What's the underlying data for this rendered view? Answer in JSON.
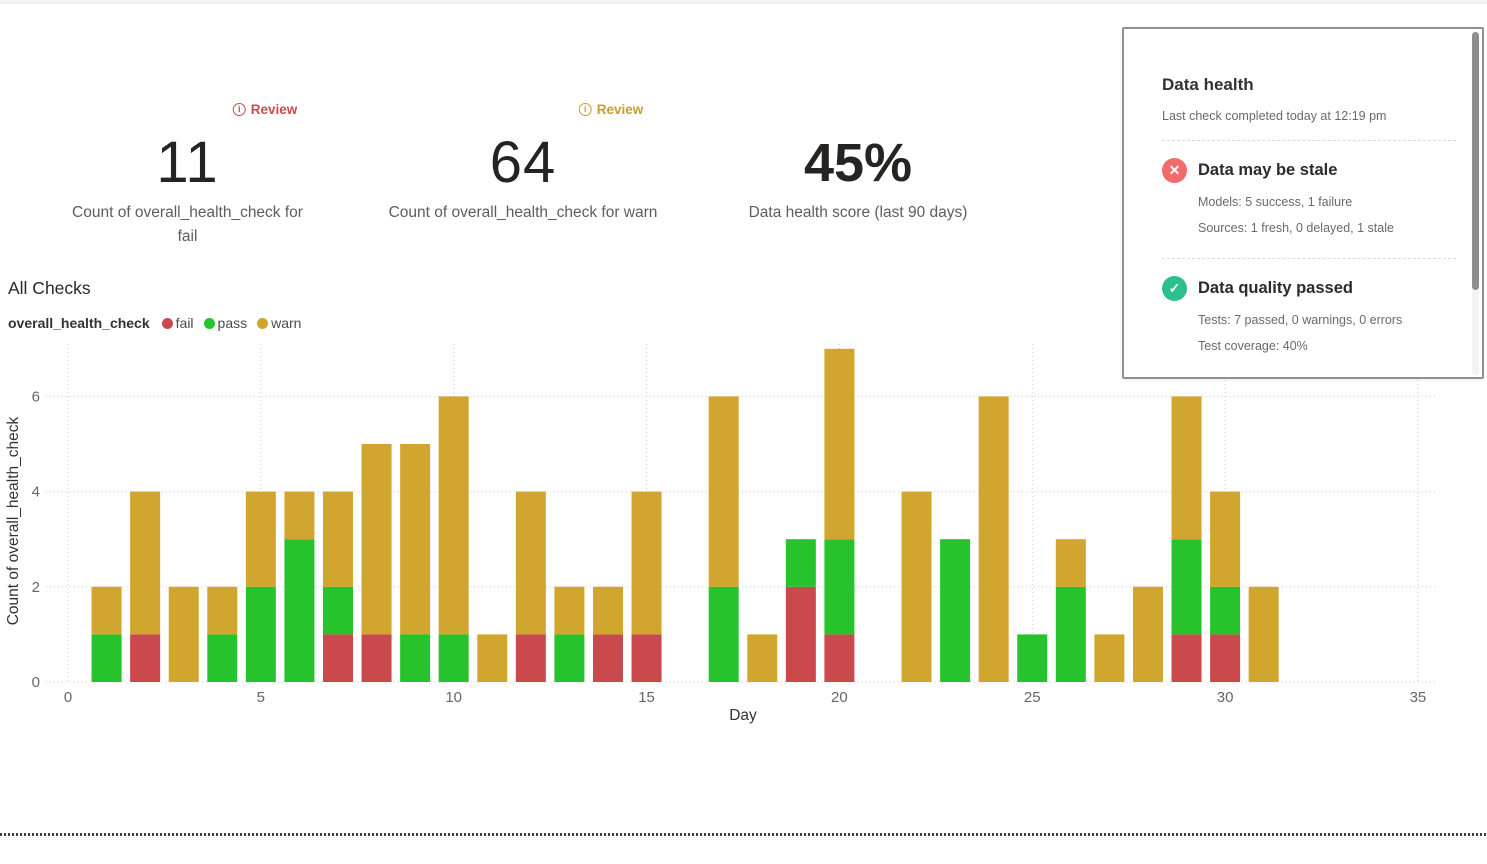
{
  "kpis": [
    {
      "badge_label": "Review",
      "accent": "#ce4a50",
      "value": "11",
      "label": "Count of overall_health_check for fail"
    },
    {
      "badge_label": "Review",
      "accent": "#c7a02a",
      "value": "64",
      "label": "Count of overall_health_check for warn"
    },
    {
      "value": "45%",
      "label": "Data health score (last 90 days)"
    }
  ],
  "section": {
    "title": "All Checks"
  },
  "legend": {
    "series_name": "overall_health_check",
    "items": [
      {
        "label": "fail",
        "color": "#c9494d"
      },
      {
        "label": "pass",
        "color": "#27c32c"
      },
      {
        "label": "warn",
        "color": "#d1a62f"
      }
    ]
  },
  "chart_data": {
    "type": "bar",
    "stacked": true,
    "title": "All Checks",
    "xlabel": "Day",
    "ylabel": "Count of overall_health_check",
    "x": [
      1,
      2,
      3,
      4,
      5,
      6,
      7,
      8,
      9,
      10,
      11,
      12,
      13,
      14,
      15,
      16,
      17,
      18,
      19,
      20,
      21,
      22,
      23,
      24,
      25,
      26,
      27,
      28,
      29,
      30,
      31
    ],
    "series": [
      {
        "name": "fail",
        "color": "#c9494d",
        "values": [
          0,
          1,
          0,
          0,
          0,
          0,
          1,
          1,
          0,
          0,
          0,
          1,
          0,
          1,
          1,
          0,
          0,
          0,
          2,
          1,
          0,
          0,
          0,
          0,
          0,
          0,
          0,
          0,
          1,
          1,
          0
        ]
      },
      {
        "name": "pass",
        "color": "#27c32c",
        "values": [
          1,
          0,
          0,
          1,
          2,
          3,
          1,
          0,
          1,
          1,
          0,
          0,
          1,
          0,
          0,
          0,
          2,
          0,
          1,
          2,
          0,
          0,
          3,
          0,
          1,
          2,
          0,
          0,
          2,
          1,
          0
        ]
      },
      {
        "name": "warn",
        "color": "#d1a62f",
        "values": [
          1,
          3,
          2,
          1,
          2,
          1,
          2,
          4,
          4,
          5,
          1,
          3,
          1,
          1,
          3,
          0,
          4,
          1,
          0,
          4,
          0,
          4,
          0,
          6,
          0,
          1,
          1,
          2,
          3,
          2,
          2
        ]
      }
    ],
    "xticks": [
      0,
      5,
      10,
      15,
      20,
      25,
      30,
      35
    ],
    "yticks": [
      0,
      2,
      4,
      6
    ],
    "xlim": [
      0,
      35.8
    ],
    "ylim": [
      0,
      7.2
    ],
    "grid": true,
    "legend_position": "top-left"
  },
  "panel": {
    "title": "Data health",
    "subtitle": "Last check completed today at 12:19 pm",
    "items": [
      {
        "icon": "x-circle-icon",
        "glyph": "✕",
        "color": "#f26b6b",
        "title": "Data may be stale",
        "lines": [
          "Models: 5 success, 1 failure",
          "Sources: 1 fresh, 0 delayed, 1 stale"
        ]
      },
      {
        "icon": "check-circle-icon",
        "glyph": "✓",
        "color": "#2dbf8d",
        "title": "Data quality passed",
        "lines": [
          "Tests: 7 passed, 0 warnings, 0 errors",
          "Test coverage: 40%"
        ]
      }
    ]
  }
}
